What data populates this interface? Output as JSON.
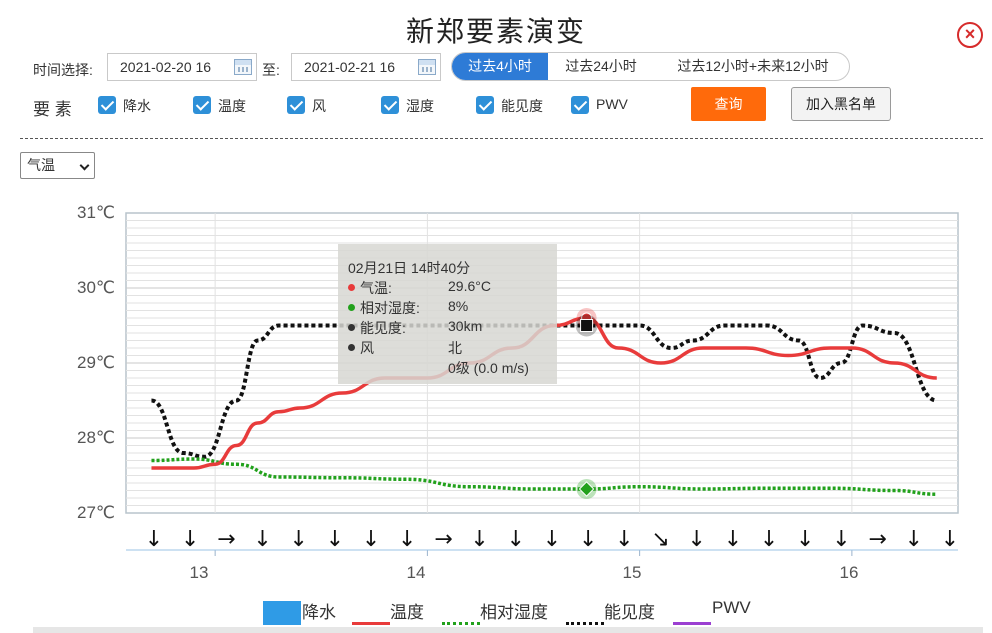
{
  "title": "新郑要素演变",
  "close_icon": "×",
  "time_select_label": "时间选择:",
  "start_date": "2021-02-20 16",
  "to_label": "至:",
  "end_date": "2021-02-21 16",
  "range_buttons": [
    "过去4小时",
    "过去24小时",
    "过去12小时+未来12小时"
  ],
  "active_range": "过去4小时",
  "elements_label": "要 素",
  "elements": [
    "降水",
    "温度",
    "风",
    "湿度",
    "能见度",
    "PWV"
  ],
  "query_button": "查询",
  "blacklist_button": "加入黑名单",
  "select_value": "气温",
  "colors": {
    "accent": "#2e7bd6",
    "query": "#ff6a0b",
    "temperature": "#e83b3b",
    "humidity": "#22a11c",
    "visibility": "#111111",
    "pwv": "#9b3fd1",
    "precip": "#2f9be6"
  },
  "tooltip": {
    "time": "02月21日 14时40分",
    "rows": [
      {
        "label": "气温:",
        "value": "29.6°C",
        "color": "#e83b3b"
      },
      {
        "label": "相对湿度:",
        "value": "8%",
        "color": "#22a11c"
      },
      {
        "label": "能见度:",
        "value": "30km",
        "color": "#333333"
      },
      {
        "label": "风",
        "value": "北",
        "color": "#333333"
      }
    ],
    "wind_detail": "0级 (0.0 m/s)"
  },
  "legend": [
    "降水",
    "温度",
    "相对湿度",
    "能见度",
    "PWV"
  ],
  "chart_data": {
    "type": "line",
    "y_ticks": [
      "31℃",
      "30℃",
      "29℃",
      "28℃",
      "27℃"
    ],
    "ylim": [
      27,
      31
    ],
    "x_ticks": [
      "13",
      "14",
      "15",
      "16"
    ],
    "x_tick_values": [
      13,
      14,
      15,
      16
    ],
    "xlim": [
      12.58,
      16.5
    ],
    "grid": true,
    "legend_position": "bottom",
    "series": [
      {
        "name": "温度",
        "style": "solid",
        "x": [
          12.7,
          12.9,
          13.0,
          13.1,
          13.2,
          13.3,
          13.4,
          13.6,
          13.8,
          14.0,
          14.2,
          14.4,
          14.6,
          14.75,
          14.9,
          15.1,
          15.3,
          15.5,
          15.7,
          15.9,
          16.0,
          16.2,
          16.4
        ],
        "values": [
          27.6,
          27.6,
          27.65,
          27.9,
          28.2,
          28.35,
          28.4,
          28.6,
          28.8,
          28.8,
          29.0,
          29.2,
          29.5,
          29.6,
          29.2,
          29.0,
          29.2,
          29.2,
          29.1,
          29.2,
          29.2,
          29.0,
          28.8
        ]
      },
      {
        "name": "相对湿度",
        "style": "dotted",
        "x": [
          12.7,
          12.9,
          13.1,
          13.3,
          13.6,
          13.9,
          14.2,
          14.5,
          14.75,
          15.0,
          15.3,
          15.6,
          15.9,
          16.2,
          16.4
        ],
        "values": [
          27.7,
          27.72,
          27.65,
          27.48,
          27.47,
          27.45,
          27.35,
          27.32,
          27.32,
          27.35,
          27.32,
          27.33,
          27.33,
          27.3,
          27.25
        ]
      },
      {
        "name": "能见度",
        "style": "dotted",
        "x": [
          12.7,
          12.85,
          12.95,
          13.1,
          13.2,
          13.3,
          13.5,
          14.0,
          14.5,
          14.75,
          15.0,
          15.15,
          15.25,
          15.4,
          15.6,
          15.75,
          15.85,
          15.95,
          16.05,
          16.2,
          16.4
        ],
        "values": [
          28.5,
          27.8,
          27.75,
          28.5,
          29.3,
          29.5,
          29.5,
          29.5,
          29.5,
          29.5,
          29.5,
          29.2,
          29.3,
          29.5,
          29.5,
          29.3,
          28.8,
          29.0,
          29.5,
          29.4,
          28.5
        ]
      }
    ],
    "highlight_x": 14.75,
    "wind_barbs": [
      "↓",
      "↓",
      "→",
      "↓",
      "↓",
      "↓",
      "↓",
      "↓",
      "→",
      "↓",
      "↓",
      "↓",
      "↓",
      "↓",
      "↘",
      "↓",
      "↓",
      "↓",
      "↓",
      "↓",
      "→",
      "↓",
      "↓"
    ]
  }
}
